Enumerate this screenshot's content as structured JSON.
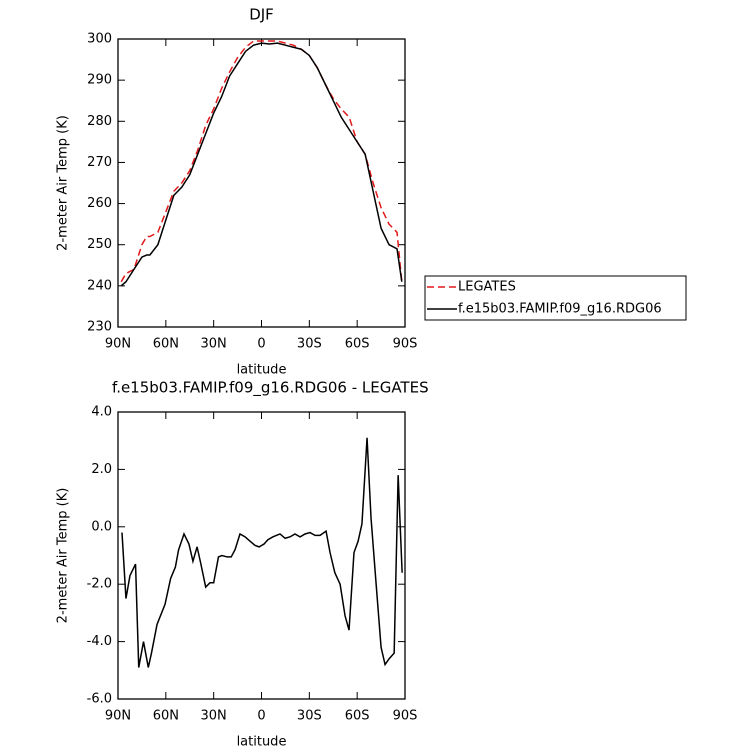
{
  "chart_data": [
    {
      "type": "line",
      "title": "DJF",
      "xlabel": "latitude",
      "ylabel": "2-meter Air Temp (K)",
      "xlim": [
        90,
        -90
      ],
      "ylim": [
        230,
        300
      ],
      "xticks": [
        {
          "value": 90,
          "label": "90N"
        },
        {
          "value": 60,
          "label": "60N"
        },
        {
          "value": 30,
          "label": "30N"
        },
        0,
        {
          "value": -30,
          "label": "30S"
        },
        {
          "value": -60,
          "label": "60S"
        },
        {
          "value": -90,
          "label": "90S"
        }
      ],
      "yticks": [
        230,
        240,
        250,
        260,
        270,
        280,
        290,
        300
      ],
      "legend": "right",
      "x": [
        88,
        85,
        80,
        75,
        72,
        70,
        65,
        60,
        55,
        50,
        45,
        40,
        35,
        30,
        25,
        20,
        15,
        10,
        5,
        0,
        -5,
        -10,
        -15,
        -20,
        -25,
        -30,
        -35,
        -40,
        -45,
        -50,
        -55,
        -60,
        -65,
        -70,
        -75,
        -80,
        -85,
        -88
      ],
      "series": [
        {
          "name": "LEGATES",
          "color": "#e0191b",
          "line_style": "dashed",
          "values": [
            241,
            243,
            244,
            250,
            252,
            252,
            253,
            258,
            263,
            265,
            268,
            273,
            279,
            283,
            288,
            292,
            295.5,
            298,
            299.5,
            299.5,
            299.5,
            299.5,
            299,
            298.5,
            297.5,
            296,
            293,
            289,
            285.5,
            283,
            281,
            275,
            272,
            265,
            259,
            255,
            253,
            241
          ]
        },
        {
          "name": "f.e15b03.FAMIP.f09_g16.RDG06",
          "color": "#000000",
          "line_style": "solid",
          "values": [
            240,
            241,
            244,
            247,
            247.5,
            247.5,
            250,
            256,
            262,
            264,
            267,
            272,
            277,
            282,
            286,
            291,
            294,
            297,
            298.5,
            299,
            298.8,
            299,
            298.5,
            298,
            297.5,
            296,
            293,
            289,
            285,
            281,
            278,
            275,
            272,
            263,
            254,
            250,
            249,
            241
          ]
        }
      ]
    },
    {
      "type": "line",
      "title": "f.e15b03.FAMIP.f09_g16.RDG06 - LEGATES",
      "xlabel": "latitude",
      "ylabel": "2-meter Air Temp (K)",
      "xlim": [
        90,
        -90
      ],
      "ylim": [
        -6,
        4
      ],
      "xticks": [
        {
          "value": 90,
          "label": "90N"
        },
        {
          "value": 60,
          "label": "60N"
        },
        {
          "value": 30,
          "label": "30N"
        },
        0,
        {
          "value": -30,
          "label": "30S"
        },
        {
          "value": -60,
          "label": "60S"
        },
        {
          "value": -90,
          "label": "90S"
        }
      ],
      "yticks": [
        {
          "value": -6,
          "label": "-6.0"
        },
        {
          "value": -4,
          "label": "-4.0"
        },
        {
          "value": -2,
          "label": "-2.0"
        },
        {
          "value": 0,
          "label": "0.0"
        },
        {
          "value": 2,
          "label": "2.0"
        },
        {
          "value": 4,
          "label": "4.0"
        }
      ],
      "color": "#000000",
      "x": [
        87.5,
        85,
        82.5,
        79,
        77,
        74,
        71,
        69,
        65.5,
        60.5,
        57,
        54,
        52,
        48.6,
        45.5,
        43,
        40.4,
        38,
        35,
        32.3,
        30,
        27,
        24.8,
        21.6,
        19,
        16.6,
        13.5,
        10.3,
        7.2,
        4,
        1.5,
        -1.6,
        -4,
        -7.2,
        -11.6,
        -14.8,
        -17.9,
        -21,
        -24.2,
        -27.3,
        -30.4,
        -33.6,
        -36.7,
        -40.5,
        -43,
        -46,
        -49.3,
        -52.4,
        -54.9,
        -58,
        -60.6,
        -63,
        -66.2,
        -68.7,
        -71.9,
        -75,
        -77.5,
        -80,
        -83.2,
        -85.7,
        -88.2
      ],
      "values": [
        -0.2,
        -2.5,
        -1.7,
        -1.3,
        -4.9,
        -4.0,
        -4.9,
        -4.4,
        -3.4,
        -2.7,
        -1.8,
        -1.4,
        -0.8,
        -0.25,
        -0.6,
        -1.2,
        -0.7,
        -1.3,
        -2.1,
        -1.95,
        -1.95,
        -1.05,
        -1.0,
        -1.05,
        -1.05,
        -0.8,
        -0.25,
        -0.35,
        -0.5,
        -0.65,
        -0.7,
        -0.6,
        -0.45,
        -0.35,
        -0.25,
        -0.4,
        -0.35,
        -0.25,
        -0.35,
        -0.25,
        -0.2,
        -0.3,
        -0.3,
        -0.15,
        -0.9,
        -1.6,
        -2.0,
        -3.1,
        -3.6,
        -0.9,
        -0.5,
        0.1,
        3.1,
        0.3,
        -2.0,
        -4.2,
        -4.8,
        -4.6,
        -4.4,
        1.8,
        -1.6
      ]
    }
  ]
}
